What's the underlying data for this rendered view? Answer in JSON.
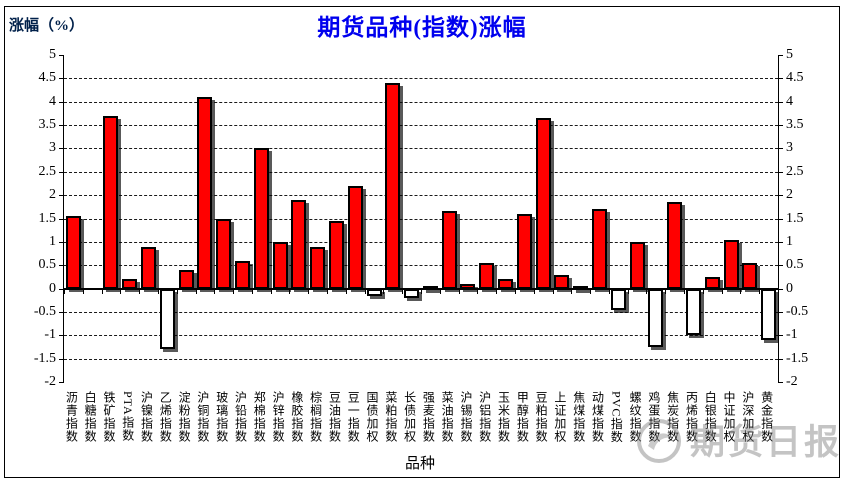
{
  "title": "期货品种(指数)涨幅",
  "y_axis_unit_label": "涨幅（%）",
  "x_axis_title": "品种",
  "watermark_text": "期货日报",
  "colors": {
    "title": "#0000ee",
    "y_axis_unit_label": "#00204a",
    "bar_positive": "#ff0000",
    "bar_negative": "#ffffff",
    "axis": "#000000"
  },
  "y_tick_labels": [
    "5",
    "4.5",
    "4",
    "3.5",
    "3",
    "2.5",
    "2",
    "1.5",
    "1",
    "0.5",
    "0",
    "-0.5",
    "-1",
    "-1.5",
    "-2"
  ],
  "chart_data": {
    "type": "bar",
    "title": "期货品种(指数)涨幅",
    "xlabel": "品种",
    "ylabel": "涨幅（%）",
    "ylim": [
      -2,
      5
    ],
    "ytick_step": 0.5,
    "grid": "horizontal-dashed",
    "legend_position": "none",
    "axis_sides": [
      "left",
      "right"
    ],
    "categories": [
      "沥青指数",
      "白糖指数",
      "铁矿指数",
      "PTA指数",
      "沪镍指数",
      "乙烯指数",
      "淀粉指数",
      "沪铜指数",
      "玻璃指数",
      "沪铅指数",
      "郑棉指数",
      "沪锌指数",
      "橡胶指数",
      "棕榈指数",
      "豆油指数",
      "豆一指数",
      "国债加权",
      "菜粕指数",
      "长债加权",
      "强麦指数",
      "菜油指数",
      "沪锡指数",
      "沪铝指数",
      "玉米指数",
      "甲醇指数",
      "豆粕指数",
      "上证加权",
      "焦煤指数",
      "动煤指数",
      "PVC指数",
      "螺纹指数",
      "鸡蛋指数",
      "焦炭指数",
      "丙烯指数",
      "白银指数",
      "中证加权",
      "沪深加权",
      "黄金指数"
    ],
    "values": [
      1.55,
      0,
      3.7,
      0.2,
      0.9,
      -1.3,
      0.4,
      4.1,
      1.5,
      0.6,
      3.0,
      1.0,
      1.9,
      0.9,
      1.45,
      2.2,
      -0.15,
      4.4,
      -0.2,
      0.05,
      1.65,
      0.1,
      0.55,
      0.2,
      1.6,
      3.65,
      0.3,
      0.05,
      1.7,
      -0.45,
      1.0,
      -1.25,
      1.85,
      -1.0,
      0.25,
      1.05,
      0.55,
      -1.1
    ]
  }
}
